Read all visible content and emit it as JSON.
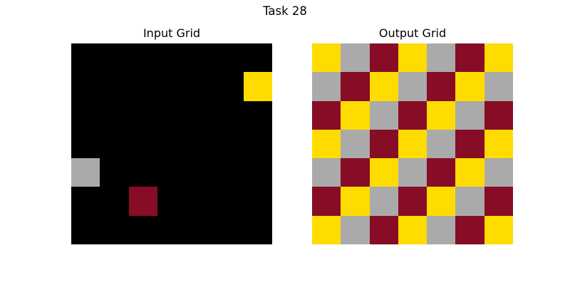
{
  "title": "Task 28",
  "palette": {
    "0": "#000000",
    "5": "#AAAAAA",
    "4": "#FFDC00",
    "9": "#870C25"
  },
  "panels": [
    {
      "id": "input",
      "title": "Input Grid",
      "rows": 7,
      "cols": 7,
      "cells": [
        [
          0,
          0,
          0,
          0,
          0,
          0,
          0
        ],
        [
          0,
          0,
          0,
          0,
          0,
          0,
          4
        ],
        [
          0,
          0,
          0,
          0,
          0,
          0,
          0
        ],
        [
          0,
          0,
          0,
          0,
          0,
          0,
          0
        ],
        [
          5,
          0,
          0,
          0,
          0,
          0,
          0
        ],
        [
          0,
          0,
          9,
          0,
          0,
          0,
          0
        ],
        [
          0,
          0,
          0,
          0,
          0,
          0,
          0
        ]
      ]
    },
    {
      "id": "output",
      "title": "Output Grid",
      "rows": 7,
      "cols": 7,
      "cells": [
        [
          4,
          5,
          9,
          4,
          5,
          9,
          4
        ],
        [
          5,
          9,
          4,
          5,
          9,
          4,
          5
        ],
        [
          9,
          4,
          5,
          9,
          4,
          5,
          9
        ],
        [
          4,
          5,
          9,
          4,
          5,
          9,
          4
        ],
        [
          5,
          9,
          4,
          5,
          9,
          4,
          5
        ],
        [
          9,
          4,
          5,
          9,
          4,
          5,
          9
        ],
        [
          4,
          5,
          9,
          4,
          5,
          9,
          4
        ]
      ]
    }
  ]
}
